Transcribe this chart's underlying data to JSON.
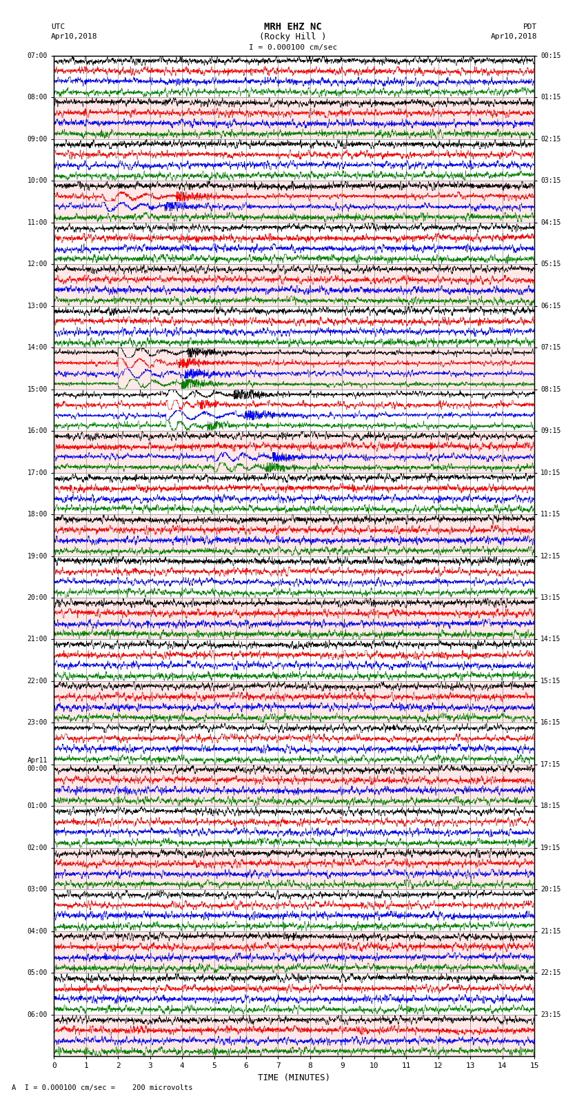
{
  "title_line1": "MRH EHZ NC",
  "title_line2": "(Rocky Hill )",
  "scale_label": "I = 0.000100 cm/sec",
  "bottom_label": "A  I = 0.000100 cm/sec =    200 microvolts",
  "xlabel": "TIME (MINUTES)",
  "left_header_line1": "UTC",
  "left_header_line2": "Apr10,2018",
  "right_header_line1": "PDT",
  "right_header_line2": "Apr10,2018",
  "left_times": [
    "07:00",
    "08:00",
    "09:00",
    "10:00",
    "11:00",
    "12:00",
    "13:00",
    "14:00",
    "15:00",
    "16:00",
    "17:00",
    "18:00",
    "19:00",
    "20:00",
    "21:00",
    "22:00",
    "23:00",
    "Apr11\n00:00",
    "01:00",
    "02:00",
    "03:00",
    "04:00",
    "05:00",
    "06:00"
  ],
  "right_times": [
    "00:15",
    "01:15",
    "02:15",
    "03:15",
    "04:15",
    "05:15",
    "06:15",
    "07:15",
    "08:15",
    "09:15",
    "10:15",
    "11:15",
    "12:15",
    "13:15",
    "14:15",
    "15:15",
    "16:15",
    "17:15",
    "18:15",
    "19:15",
    "20:15",
    "21:15",
    "22:15",
    "23:15"
  ],
  "n_rows": 24,
  "traces_per_row": 4,
  "colors": [
    "black",
    "red",
    "blue",
    "green"
  ],
  "minutes": 15,
  "fig_width": 8.5,
  "fig_height": 16.13,
  "dpi": 100,
  "samples_per_trace": 3000,
  "trace_amplitude": 0.45,
  "row_bg_even": "#ffffff",
  "row_bg_odd": "#ffe8e8",
  "grid_color": "#888888",
  "spine_color": "#000000"
}
